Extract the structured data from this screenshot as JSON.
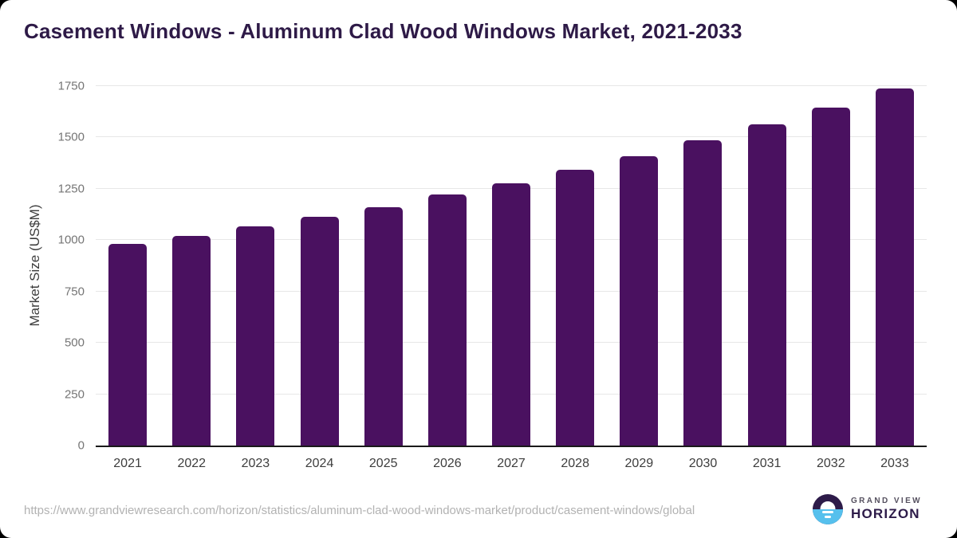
{
  "page": {
    "source_url": "https://www.grandviewresearch.com/horizon/statistics/aluminum-clad-wood-windows-market/product/casement-windows/global",
    "brand": {
      "line1": "GRAND VIEW",
      "line2": "HORIZON"
    }
  },
  "chart_data": {
    "type": "bar",
    "title": "Casement Windows - Aluminum Clad Wood Windows Market, 2021-2033",
    "categories": [
      "2021",
      "2022",
      "2023",
      "2024",
      "2025",
      "2026",
      "2027",
      "2028",
      "2029",
      "2030",
      "2031",
      "2032",
      "2033"
    ],
    "values": [
      980,
      1021,
      1068,
      1114,
      1162,
      1221,
      1278,
      1344,
      1409,
      1487,
      1564,
      1645,
      1740
    ],
    "xlabel": "",
    "ylabel": "Market Size (US$M)",
    "ylim": [
      0,
      1750
    ],
    "ytick_step": 250,
    "grid": true,
    "legend": false,
    "bar_color": "#4a1160",
    "colors": {
      "title": "#2e1a47",
      "y_tick_label": "#757575",
      "x_tick_label": "#3d3d3d",
      "gridline": "#e7e7e7",
      "axis_line": "#1a1a1a",
      "source_url": "#b2b2b2",
      "logo_purple": "#2d1b49",
      "logo_blue": "#56c0ed"
    }
  }
}
